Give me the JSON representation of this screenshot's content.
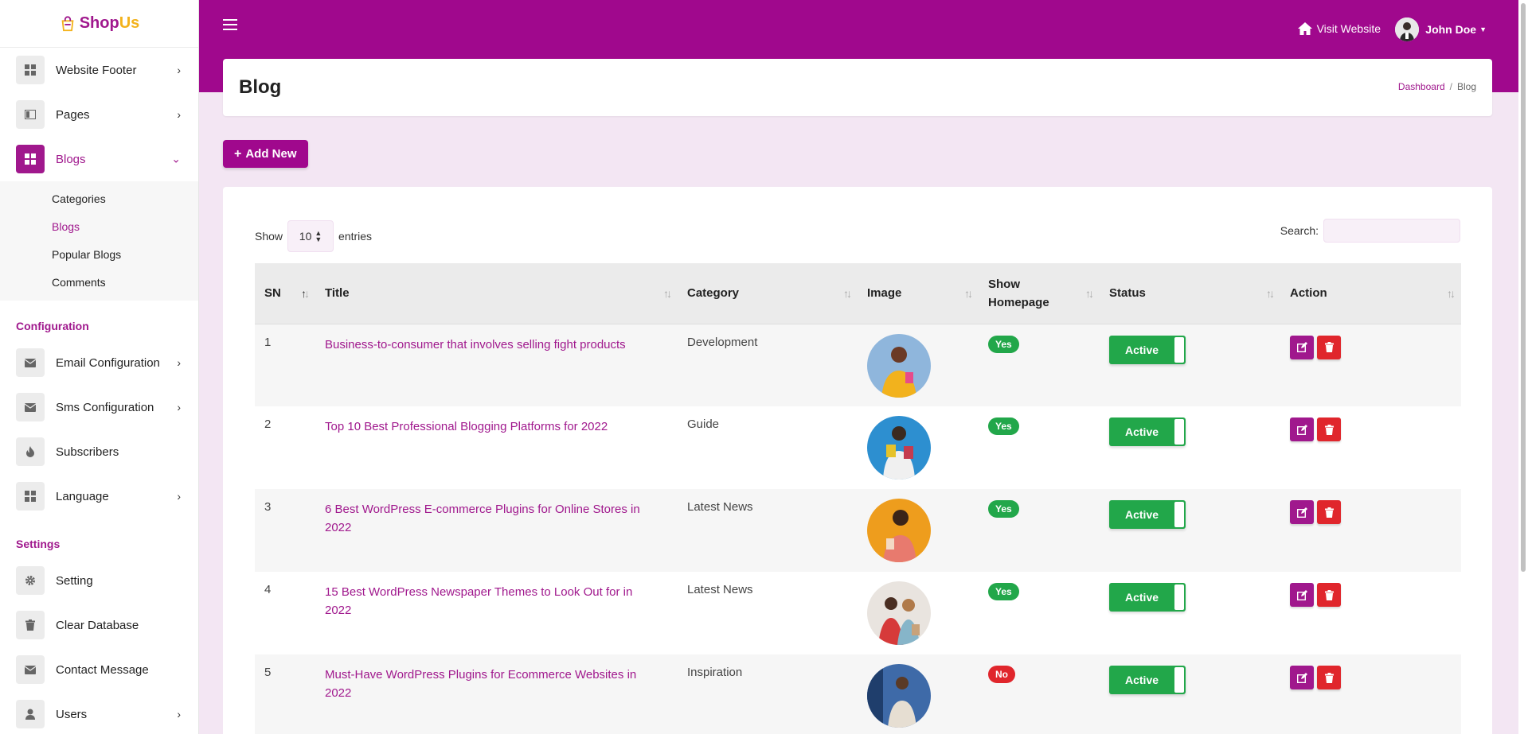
{
  "brand": {
    "shop": "Shop",
    "us": "Us"
  },
  "sidebar": {
    "items_top": [
      {
        "label": "Website Footer",
        "icon": "grid-icon",
        "chevron": "›"
      },
      {
        "label": "Pages",
        "icon": "columns-icon",
        "chevron": "›"
      },
      {
        "label": "Blogs",
        "icon": "grid-icon",
        "chevron": "⌄"
      }
    ],
    "blog_sub": [
      "Categories",
      "Blogs",
      "Popular Blogs",
      "Comments"
    ],
    "section_config": "Configuration",
    "items_config": [
      {
        "label": "Email Configuration",
        "icon": "envelope-icon",
        "chevron": "›"
      },
      {
        "label": "Sms Configuration",
        "icon": "envelope-icon",
        "chevron": "›"
      },
      {
        "label": "Subscribers",
        "icon": "fire-icon",
        "chevron": ""
      },
      {
        "label": "Language",
        "icon": "grid-icon",
        "chevron": "›"
      }
    ],
    "section_settings": "Settings",
    "items_settings": [
      {
        "label": "Setting",
        "icon": "gear-icon",
        "chevron": ""
      },
      {
        "label": "Clear Database",
        "icon": "trash-icon",
        "chevron": ""
      },
      {
        "label": "Contact Message",
        "icon": "envelope-icon",
        "chevron": ""
      },
      {
        "label": "Users",
        "icon": "user-icon",
        "chevron": "›"
      }
    ]
  },
  "topbar": {
    "visit_label": "Visit Website",
    "user_name": "John Doe"
  },
  "page": {
    "title": "Blog",
    "breadcrumb": [
      "Dashboard",
      "Blog"
    ],
    "add_label": "Add New"
  },
  "table_controls": {
    "show": "Show",
    "length": "10",
    "entries": "entries",
    "search_label": "Search:",
    "search_value": ""
  },
  "table": {
    "columns": [
      "SN",
      "Title",
      "Category",
      "Image",
      "Show Homepage",
      "Status",
      "Action"
    ],
    "rows": [
      {
        "sn": "1",
        "title": "Business-to-consumer that involves selling fight products",
        "category": "Development",
        "homepage": "Yes",
        "status": "Active"
      },
      {
        "sn": "2",
        "title": "Top 10 Best Professional Blogging Platforms for 2022",
        "category": "Guide",
        "homepage": "Yes",
        "status": "Active"
      },
      {
        "sn": "3",
        "title": "6 Best WordPress E-commerce Plugins for Online Stores in 2022",
        "category": "Latest News",
        "homepage": "Yes",
        "status": "Active"
      },
      {
        "sn": "4",
        "title": "15 Best WordPress Newspaper Themes to Look Out for in 2022",
        "category": "Latest News",
        "homepage": "Yes",
        "status": "Active"
      },
      {
        "sn": "5",
        "title": "Must-Have WordPress Plugins for Ecommerce Websites in 2022",
        "category": "Inspiration",
        "homepage": "No",
        "status": "Active"
      }
    ]
  },
  "colors": {
    "accent": "#a0088d",
    "success": "#22a74a",
    "danger": "#e0262c"
  }
}
